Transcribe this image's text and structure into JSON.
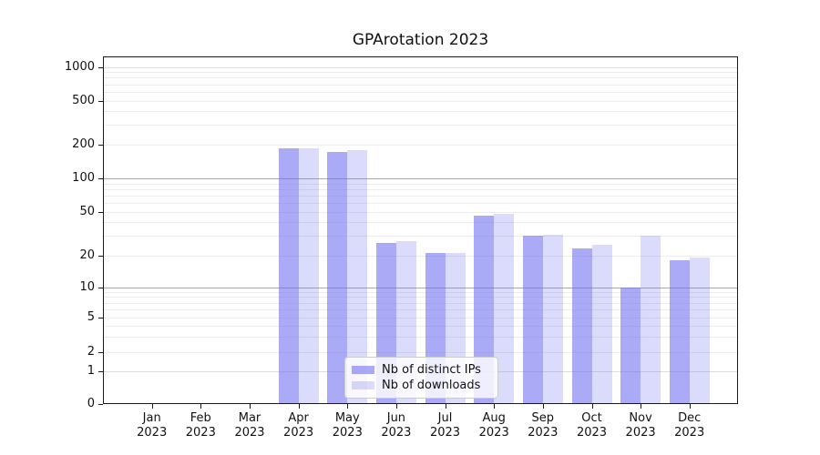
{
  "chart_data": {
    "type": "bar",
    "title": "GPArotation 2023",
    "categories": [
      {
        "month": "Jan",
        "year": "2023"
      },
      {
        "month": "Feb",
        "year": "2023"
      },
      {
        "month": "Mar",
        "year": "2023"
      },
      {
        "month": "Apr",
        "year": "2023"
      },
      {
        "month": "May",
        "year": "2023"
      },
      {
        "month": "Jun",
        "year": "2023"
      },
      {
        "month": "Jul",
        "year": "2023"
      },
      {
        "month": "Aug",
        "year": "2023"
      },
      {
        "month": "Sep",
        "year": "2023"
      },
      {
        "month": "Oct",
        "year": "2023"
      },
      {
        "month": "Nov",
        "year": "2023"
      },
      {
        "month": "Dec",
        "year": "2023"
      }
    ],
    "series": [
      {
        "name": "Nb of distinct IPs",
        "color": "#6a6af0",
        "alpha": 0.57,
        "values": [
          0,
          0,
          0,
          185,
          170,
          26,
          21,
          46,
          30,
          23,
          10,
          18
        ]
      },
      {
        "name": "Nb of downloads",
        "color": "#6a6af0",
        "alpha": 0.24,
        "values": [
          0,
          0,
          0,
          185,
          176,
          27,
          21,
          48,
          31,
          25,
          30,
          19
        ]
      }
    ],
    "y_axis": {
      "scale": "symlog",
      "ticks": [
        0,
        1,
        2,
        5,
        10,
        20,
        50,
        100,
        200,
        500,
        1000
      ]
    },
    "grid": {
      "axis": "y",
      "which": "both",
      "minor_color": "#ececec",
      "major_color": "#aaaaaa",
      "soft_major_color": "#dddddd"
    },
    "legend": {
      "position": "lower center"
    }
  }
}
